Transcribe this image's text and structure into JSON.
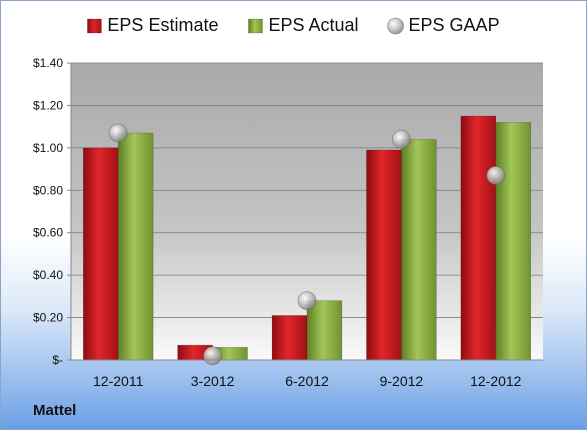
{
  "company": "Mattel",
  "chart_data": {
    "type": "bar",
    "categories": [
      "12-2011",
      "3-2012",
      "6-2012",
      "9-2012",
      "12-2012"
    ],
    "series": [
      {
        "name": "EPS Estimate",
        "kind": "bar",
        "color": "#c0141b",
        "values": [
          1.0,
          0.07,
          0.21,
          0.99,
          1.15
        ]
      },
      {
        "name": "EPS Actual",
        "kind": "bar",
        "color": "#86ad3b",
        "values": [
          1.07,
          0.06,
          0.28,
          1.04,
          1.12
        ]
      },
      {
        "name": "EPS GAAP",
        "kind": "marker",
        "color": "#b4b4b4",
        "values": [
          1.07,
          0.02,
          0.28,
          1.04,
          0.87
        ]
      }
    ],
    "y_ticks": [
      "$-",
      "$0.20",
      "$0.40",
      "$0.60",
      "$0.80",
      "$1.00",
      "$1.20",
      "$1.40"
    ],
    "ylim": [
      0,
      1.4
    ],
    "y_step": 0.2,
    "grid": true,
    "legend_position": "top"
  }
}
